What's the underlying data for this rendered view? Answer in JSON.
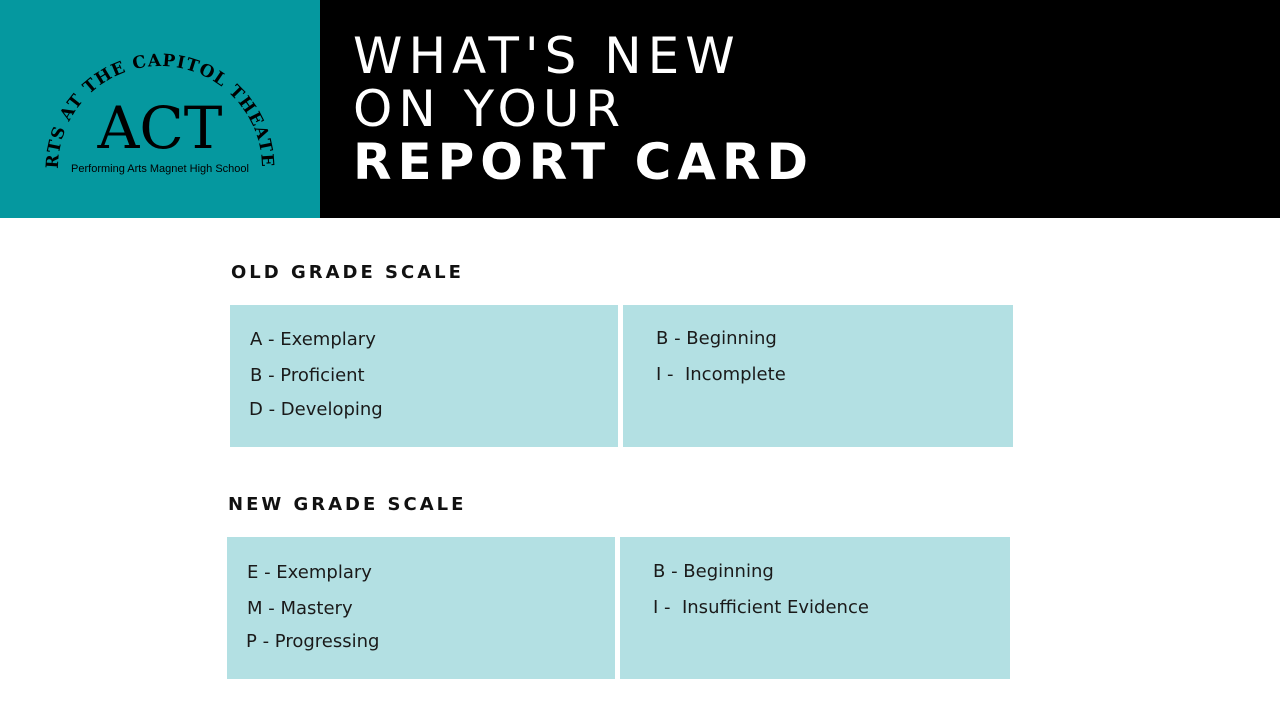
{
  "logo": {
    "arc_text": "ARTS AT THE CAPITOL THEATER",
    "acronym": "ACT",
    "subtitle": "Performing Arts Magnet High School",
    "panel_color": "#05989f"
  },
  "title": {
    "line1": "WHAT'S NEW",
    "line2": "ON YOUR",
    "line3": "REPORT CARD"
  },
  "old_scale": {
    "heading": "OLD GRADE SCALE",
    "left": [
      "A - Exemplary",
      "B - Proficient",
      "D - Developing"
    ],
    "right": [
      "B - Beginning",
      "I -  Incomplete"
    ]
  },
  "new_scale": {
    "heading": "NEW GRADE SCALE",
    "left": [
      "E - Exemplary",
      "M - Mastery",
      "P - Progressing"
    ],
    "right": [
      "B - Beginning",
      "I -  Insufficient Evidence"
    ]
  },
  "colors": {
    "box": "#b3e0e3",
    "header": "#000000"
  }
}
